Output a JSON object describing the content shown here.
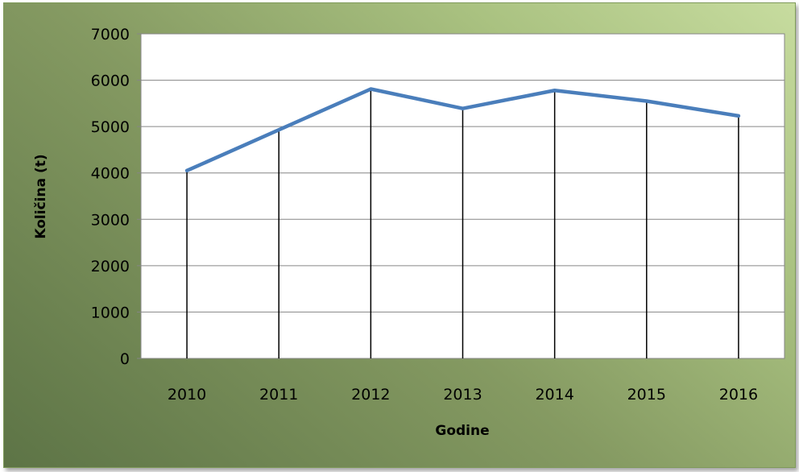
{
  "chart_data": {
    "type": "line",
    "title": "",
    "xlabel": "Godine",
    "ylabel": "Količina (t)",
    "categories": [
      "2010",
      "2011",
      "2012",
      "2013",
      "2014",
      "2015",
      "2016"
    ],
    "series": [
      {
        "values": [
          4050,
          4930,
          5810,
          5390,
          5780,
          5550,
          5230
        ],
        "color": "#4a7ebb"
      }
    ],
    "ylim": [
      0,
      7000
    ],
    "yticks": [
      "0",
      "1000",
      "2000",
      "3000",
      "4000",
      "5000",
      "6000",
      "7000"
    ],
    "grid": true,
    "drop_lines": true,
    "legend": "none"
  },
  "colors": {
    "frame_gradient_dark": "#5d7446",
    "frame_gradient_light": "#c7dc9f",
    "plot_background": "#ffffff",
    "gridline": "#868686",
    "drop_line": "#000000",
    "series_line": "#4a7ebb"
  }
}
